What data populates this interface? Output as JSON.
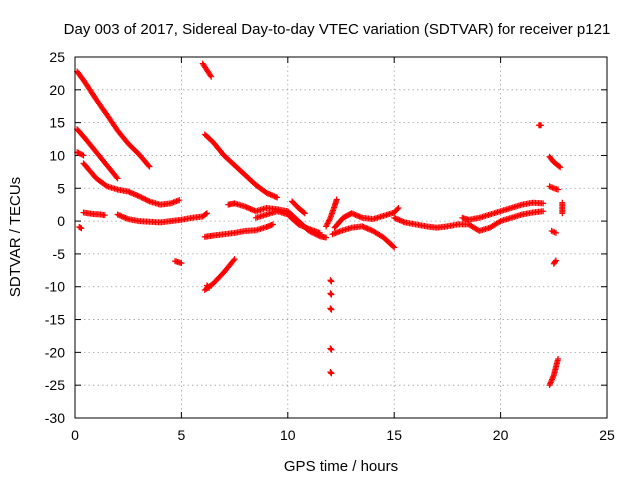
{
  "chart_data": {
    "type": "scatter",
    "title": "Day 003 of 2017, Sidereal Day-to-day VTEC variation (SDTVAR) for receiver p121",
    "xlabel": "GPS time / hours",
    "ylabel": "SDTVAR / TECUs",
    "xlim": [
      0,
      25
    ],
    "ylim": [
      -30,
      25
    ],
    "xticks": [
      0,
      5,
      10,
      15,
      20,
      25
    ],
    "yticks": [
      -30,
      -25,
      -20,
      -15,
      -10,
      -5,
      0,
      5,
      10,
      15,
      20,
      25
    ],
    "grid": true,
    "marker": "plus",
    "color": "#ff0000",
    "segments": [
      [
        [
          0.1,
          22.8
        ],
        [
          0.5,
          21.0
        ],
        [
          1.0,
          18.5
        ],
        [
          1.5,
          16.2
        ],
        [
          2.0,
          13.8
        ],
        [
          2.5,
          11.8
        ],
        [
          3.0,
          10.2
        ],
        [
          3.5,
          8.3
        ]
      ],
      [
        [
          0.1,
          14.0
        ],
        [
          0.5,
          12.5
        ],
        [
          1.0,
          10.5
        ],
        [
          1.5,
          8.5
        ],
        [
          2.0,
          6.5
        ]
      ],
      [
        [
          0.1,
          10.5
        ],
        [
          0.4,
          10.0
        ]
      ],
      [
        [
          0.4,
          8.8
        ],
        [
          1.0,
          6.5
        ],
        [
          1.5,
          5.3
        ],
        [
          2.0,
          4.8
        ],
        [
          2.5,
          4.5
        ],
        [
          3.0,
          3.8
        ],
        [
          3.5,
          3.0
        ],
        [
          4.0,
          2.5
        ],
        [
          4.5,
          2.7
        ],
        [
          4.9,
          3.2
        ]
      ],
      [
        [
          0.2,
          -0.9
        ],
        [
          0.3,
          -1.1
        ]
      ],
      [
        [
          0.4,
          1.3
        ],
        [
          0.8,
          1.1
        ],
        [
          1.2,
          1.0
        ],
        [
          1.4,
          0.9
        ]
      ],
      [
        [
          2.0,
          1.0
        ],
        [
          2.5,
          0.3
        ],
        [
          3.0,
          0.0
        ],
        [
          3.5,
          -0.1
        ],
        [
          4.0,
          -0.2
        ],
        [
          4.5,
          0.0
        ],
        [
          5.0,
          0.2
        ],
        [
          5.5,
          0.5
        ],
        [
          6.0,
          0.7
        ],
        [
          6.2,
          1.2
        ]
      ],
      [
        [
          4.7,
          -6.1
        ],
        [
          5.0,
          -6.4
        ]
      ],
      [
        [
          6.0,
          24.0
        ],
        [
          6.2,
          23.0
        ],
        [
          6.4,
          22.0
        ]
      ],
      [
        [
          6.1,
          13.2
        ],
        [
          6.5,
          12.0
        ],
        [
          7.0,
          10.0
        ],
        [
          7.5,
          8.5
        ],
        [
          8.0,
          7.0
        ],
        [
          8.5,
          5.5
        ],
        [
          9.0,
          4.3
        ],
        [
          9.5,
          3.6
        ]
      ],
      [
        [
          6.1,
          -10.5
        ],
        [
          6.5,
          -9.5
        ],
        [
          7.0,
          -7.8
        ],
        [
          7.5,
          -5.8
        ]
      ],
      [
        [
          6.2,
          -9.8
        ],
        [
          6.3,
          -10.2
        ]
      ],
      [
        [
          6.1,
          -2.4
        ],
        [
          6.5,
          -2.2
        ],
        [
          7.0,
          -2.0
        ],
        [
          7.5,
          -1.8
        ],
        [
          8.0,
          -1.5
        ],
        [
          8.5,
          -1.4
        ],
        [
          9.0,
          -0.9
        ],
        [
          9.3,
          -0.5
        ]
      ],
      [
        [
          7.2,
          2.5
        ],
        [
          7.5,
          2.7
        ],
        [
          8.0,
          2.2
        ],
        [
          8.5,
          1.5
        ],
        [
          9.0,
          2.0
        ],
        [
          9.5,
          1.8
        ],
        [
          10.0,
          1.5
        ],
        [
          10.5,
          0.0
        ],
        [
          11.0,
          -1.5
        ],
        [
          11.5,
          -2.3
        ],
        [
          11.8,
          -2.5
        ]
      ],
      [
        [
          8.5,
          0.5
        ],
        [
          9.0,
          1.0
        ],
        [
          9.5,
          1.5
        ],
        [
          10.0,
          1.0
        ],
        [
          10.5,
          -0.5
        ],
        [
          11.0,
          -1.2
        ],
        [
          11.5,
          -1.8
        ]
      ],
      [
        [
          10.2,
          3.0
        ],
        [
          10.5,
          2.0
        ],
        [
          10.8,
          1.2
        ]
      ],
      [
        [
          11.8,
          -0.8
        ],
        [
          12.0,
          0.5
        ],
        [
          12.2,
          2.3
        ],
        [
          12.3,
          3.3
        ]
      ],
      [
        [
          12.0,
          -9.0
        ],
        [
          12.05,
          -9.2
        ]
      ],
      [
        [
          12.0,
          -11.0
        ],
        [
          12.05,
          -11.2
        ]
      ],
      [
        [
          12.0,
          -13.3
        ],
        [
          12.05,
          -13.5
        ]
      ],
      [
        [
          12.0,
          -19.4
        ],
        [
          12.05,
          -19.6
        ]
      ],
      [
        [
          12.0,
          -23.0
        ],
        [
          12.05,
          -23.2
        ]
      ],
      [
        [
          12.1,
          -2.0
        ],
        [
          12.5,
          -1.5
        ],
        [
          13.0,
          -1.0
        ],
        [
          13.5,
          -0.8
        ],
        [
          14.0,
          -1.5
        ],
        [
          14.5,
          -2.5
        ],
        [
          15.0,
          -4.0
        ]
      ],
      [
        [
          12.2,
          -1.0
        ],
        [
          12.6,
          0.5
        ],
        [
          13.0,
          1.2
        ],
        [
          13.5,
          0.5
        ],
        [
          14.0,
          0.3
        ],
        [
          14.5,
          0.8
        ],
        [
          15.0,
          1.3
        ],
        [
          15.2,
          2.0
        ]
      ],
      [
        [
          15.0,
          0.5
        ],
        [
          15.5,
          -0.2
        ],
        [
          16.0,
          -0.5
        ],
        [
          16.5,
          -0.8
        ],
        [
          17.0,
          -1.0
        ],
        [
          17.5,
          -0.8
        ],
        [
          18.0,
          -0.5
        ],
        [
          18.5,
          -0.5
        ],
        [
          19.0,
          -1.5
        ],
        [
          19.5,
          -1.0
        ],
        [
          20.0,
          0.0
        ],
        [
          20.5,
          0.5
        ],
        [
          21.0,
          1.0
        ],
        [
          21.5,
          1.3
        ],
        [
          22.0,
          1.5
        ]
      ],
      [
        [
          18.2,
          0.5
        ],
        [
          18.5,
          0.2
        ],
        [
          19.0,
          0.5
        ],
        [
          19.5,
          1.0
        ],
        [
          20.0,
          1.5
        ],
        [
          20.5,
          2.0
        ],
        [
          21.0,
          2.5
        ],
        [
          21.5,
          2.8
        ],
        [
          22.0,
          2.7
        ]
      ],
      [
        [
          21.8,
          14.6
        ],
        [
          21.9,
          14.6
        ]
      ],
      [
        [
          22.3,
          9.8
        ],
        [
          22.5,
          9.0
        ],
        [
          22.8,
          8.2
        ]
      ],
      [
        [
          22.3,
          5.3
        ],
        [
          22.5,
          5.0
        ],
        [
          22.7,
          4.8
        ]
      ],
      [
        [
          22.4,
          -1.5
        ],
        [
          22.6,
          -1.8
        ]
      ],
      [
        [
          22.5,
          -6.5
        ],
        [
          22.6,
          -6.0
        ]
      ],
      [
        [
          22.3,
          -25.0
        ],
        [
          22.5,
          -23.5
        ],
        [
          22.7,
          -21.0
        ]
      ],
      [
        [
          22.9,
          2.8
        ],
        [
          22.9,
          1.2
        ]
      ]
    ]
  }
}
